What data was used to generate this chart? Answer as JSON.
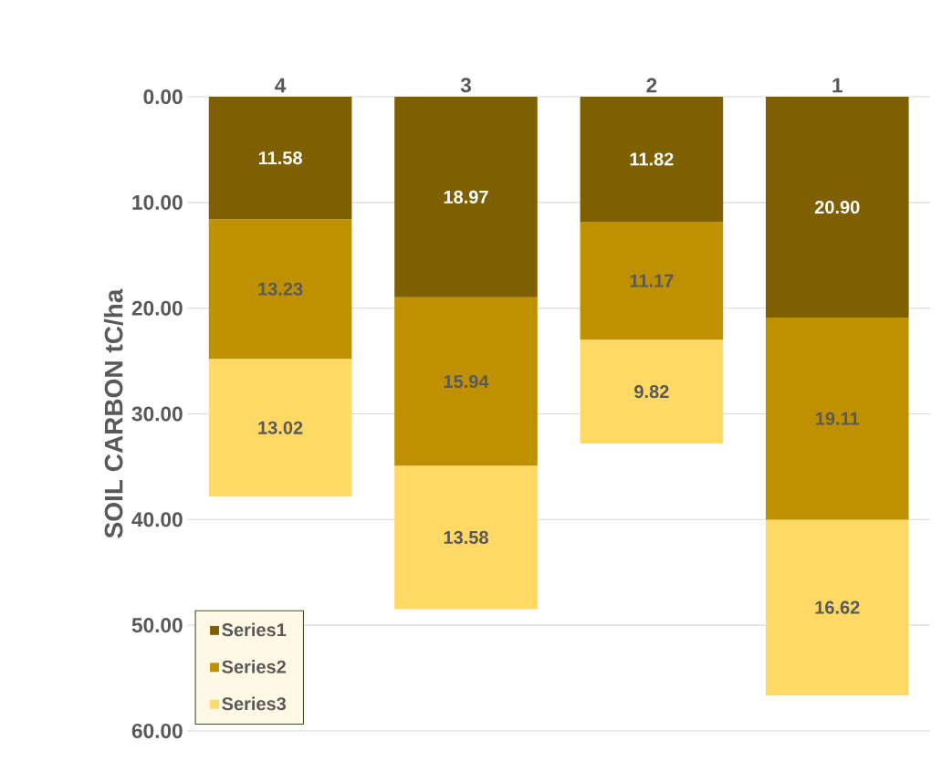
{
  "chart_data": {
    "type": "bar",
    "stacked": true,
    "ylabel": "SOIL CARBON tC/ha",
    "categories": [
      "4",
      "3",
      "2",
      "1"
    ],
    "series": [
      {
        "name": "Series1",
        "color": "#7f6000",
        "values": [
          11.58,
          18.97,
          11.82,
          20.9
        ],
        "value_labels": [
          "11.58",
          "18.97",
          "11.82",
          "20.90"
        ]
      },
      {
        "name": "Series2",
        "color": "#bf9000",
        "values": [
          13.23,
          15.94,
          11.17,
          19.11
        ],
        "value_labels": [
          "13.23",
          "15.94",
          "11.17",
          "19.11"
        ]
      },
      {
        "name": "Series3",
        "color": "#ffd966",
        "values": [
          13.02,
          13.58,
          9.82,
          16.62
        ],
        "value_labels": [
          "13.02",
          "13.58",
          "9.82",
          "16.62"
        ]
      }
    ],
    "ylim": [
      60,
      0
    ],
    "yticks": [
      {
        "value": 0,
        "label": "0.00"
      },
      {
        "value": 10,
        "label": "10.00"
      },
      {
        "value": 20,
        "label": "20.00"
      },
      {
        "value": 30,
        "label": "30.00"
      },
      {
        "value": 40,
        "label": "40.00"
      },
      {
        "value": 50,
        "label": "50.00"
      },
      {
        "value": 60,
        "label": "60.00"
      }
    ],
    "grid": "y",
    "legend": "bottom left"
  }
}
